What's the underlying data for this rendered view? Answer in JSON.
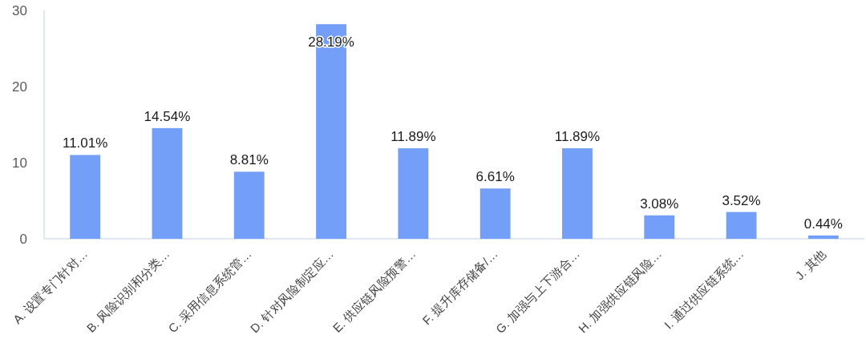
{
  "chart_data": {
    "type": "bar",
    "categories": [
      "A. 设置专门针对…",
      "B. 风险识别和分类…",
      "C. 采用信息系统管…",
      "D. 针对风险制定应…",
      "E. 供应链风险预警…",
      "F. 提升库存储备/…",
      "G. 加强与上下游合…",
      "H. 加强供应链风险…",
      "I. 通过供应链系统…",
      "J. 其他"
    ],
    "values": [
      11.01,
      14.54,
      8.81,
      28.19,
      11.89,
      6.61,
      11.89,
      3.08,
      3.52,
      0.44
    ],
    "value_labels": [
      "11.01%",
      "14.54%",
      "8.81%",
      "28.19%",
      "11.89%",
      "6.61%",
      "11.89%",
      "3.08%",
      "3.52%",
      "0.44%"
    ],
    "color": "#739ff9",
    "ylim": [
      0,
      30
    ],
    "yticks": [
      0,
      10,
      20,
      30
    ]
  }
}
